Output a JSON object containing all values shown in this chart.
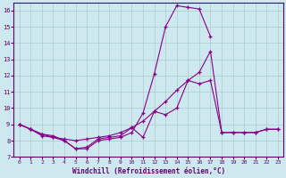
{
  "xlabel": "Windchill (Refroidissement éolien,°C)",
  "background_color": "#cde8ee",
  "line_color": "#880088",
  "grid_color": "#aacccc",
  "xlim": [
    -0.5,
    23.5
  ],
  "ylim": [
    7,
    16.5
  ],
  "xticks": [
    0,
    1,
    2,
    3,
    4,
    5,
    6,
    7,
    8,
    9,
    10,
    11,
    12,
    13,
    14,
    15,
    16,
    17,
    18,
    19,
    20,
    21,
    22,
    23
  ],
  "yticks": [
    7,
    8,
    9,
    10,
    11,
    12,
    13,
    14,
    15,
    16
  ],
  "line1_x": [
    0,
    1,
    2,
    3,
    4,
    5,
    6,
    7,
    8,
    9,
    10,
    11,
    12,
    13,
    14,
    15,
    16,
    17,
    18,
    19,
    20,
    21,
    22,
    23
  ],
  "line1_y": [
    9.0,
    8.7,
    8.4,
    8.3,
    8.0,
    7.5,
    7.5,
    8.0,
    8.1,
    8.2,
    8.5,
    9.7,
    12.1,
    15.0,
    16.3,
    16.2,
    16.1,
    14.4,
    null,
    null,
    null,
    null,
    null,
    null
  ],
  "line2_x": [
    0,
    1,
    2,
    3,
    4,
    5,
    6,
    7,
    8,
    9,
    10,
    11,
    12,
    13,
    14,
    15,
    16,
    17,
    18,
    19,
    20,
    21,
    22,
    23
  ],
  "line2_y": [
    9.0,
    8.7,
    8.4,
    8.2,
    8.1,
    8.0,
    8.1,
    8.2,
    8.3,
    8.5,
    8.8,
    9.2,
    9.8,
    10.4,
    11.1,
    11.7,
    12.2,
    13.5,
    8.5,
    8.5,
    8.5,
    8.5,
    8.7,
    8.7
  ],
  "line3_x": [
    0,
    1,
    2,
    3,
    4,
    5,
    6,
    7,
    8,
    9,
    10,
    11,
    12,
    13,
    14,
    15,
    16,
    17,
    18,
    19,
    20,
    21,
    22,
    23
  ],
  "line3_y": [
    9.0,
    8.7,
    8.3,
    8.2,
    8.0,
    7.5,
    7.6,
    8.1,
    8.2,
    8.3,
    8.8,
    8.2,
    9.8,
    9.6,
    10.0,
    11.7,
    11.5,
    11.7,
    8.5,
    8.5,
    8.5,
    8.5,
    8.7,
    8.7
  ]
}
